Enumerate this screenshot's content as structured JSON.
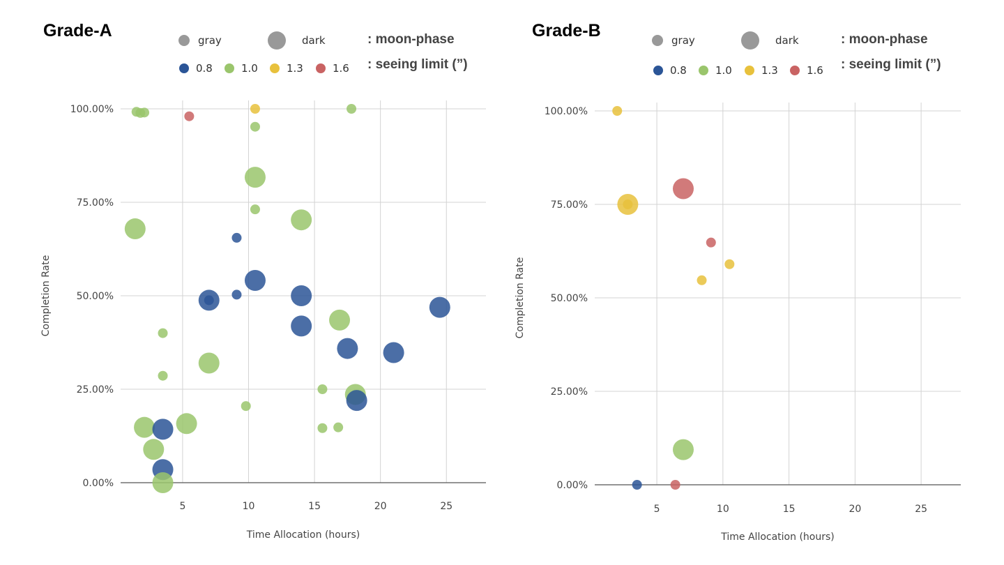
{
  "legend": {
    "moon_phase": {
      "items": [
        "gray",
        "dark"
      ],
      "caption": ": moon-phase"
    },
    "seeing_limit": {
      "items": [
        "0.8",
        "1.0",
        "1.3",
        "1.6"
      ],
      "caption": ": seeing limit (”)"
    }
  },
  "colors": {
    "0.8": "#2b5597",
    "1.0": "#9ac56c",
    "1.3": "#e8c13c",
    "1.6": "#c96363",
    "legend_gray": "#999999"
  },
  "chart_data": [
    {
      "type": "scatter",
      "title": "Grade-A",
      "xlabel": "Time Allocation (hours)",
      "ylabel": "Completion Rate",
      "xlim": [
        0.3,
        28
      ],
      "ylim": [
        0,
        100
      ],
      "xticks": [
        5,
        10,
        15,
        20,
        25
      ],
      "yticks": [
        0,
        25,
        50,
        75,
        100
      ],
      "ytick_labels": [
        "0.00%",
        "25.00%",
        "50.00%",
        "75.00%",
        "100.00%"
      ],
      "grid": true,
      "points": [
        {
          "x": 1.5,
          "y": 99.2,
          "seeing": "1.0",
          "moon": "gray"
        },
        {
          "x": 1.8,
          "y": 98.9,
          "seeing": "1.0",
          "moon": "gray"
        },
        {
          "x": 2.1,
          "y": 99.0,
          "seeing": "1.0",
          "moon": "gray"
        },
        {
          "x": 5.5,
          "y": 98.0,
          "seeing": "1.6",
          "moon": "gray"
        },
        {
          "x": 10.5,
          "y": 100,
          "seeing": "1.3",
          "moon": "gray"
        },
        {
          "x": 17.8,
          "y": 100,
          "seeing": "1.0",
          "moon": "gray"
        },
        {
          "x": 10.5,
          "y": 95.2,
          "seeing": "1.0",
          "moon": "gray"
        },
        {
          "x": 10.5,
          "y": 81.7,
          "seeing": "1.0",
          "moon": "dark"
        },
        {
          "x": 10.5,
          "y": 73.1,
          "seeing": "1.0",
          "moon": "gray"
        },
        {
          "x": 14.0,
          "y": 70.3,
          "seeing": "1.0",
          "moon": "dark"
        },
        {
          "x": 1.4,
          "y": 67.9,
          "seeing": "1.0",
          "moon": "dark"
        },
        {
          "x": 9.1,
          "y": 65.5,
          "seeing": "0.8",
          "moon": "gray"
        },
        {
          "x": 10.5,
          "y": 54.1,
          "seeing": "0.8",
          "moon": "dark"
        },
        {
          "x": 7.0,
          "y": 48.8,
          "seeing": "0.8",
          "moon": "dark"
        },
        {
          "x": 7.0,
          "y": 48.8,
          "seeing": "0.8",
          "moon": "gray"
        },
        {
          "x": 9.1,
          "y": 50.3,
          "seeing": "0.8",
          "moon": "gray"
        },
        {
          "x": 14.0,
          "y": 50.0,
          "seeing": "0.8",
          "moon": "dark"
        },
        {
          "x": 24.5,
          "y": 46.9,
          "seeing": "0.8",
          "moon": "dark"
        },
        {
          "x": 16.9,
          "y": 43.5,
          "seeing": "1.0",
          "moon": "dark"
        },
        {
          "x": 14.0,
          "y": 41.9,
          "seeing": "0.8",
          "moon": "dark"
        },
        {
          "x": 3.5,
          "y": 40.0,
          "seeing": "1.0",
          "moon": "gray"
        },
        {
          "x": 17.5,
          "y": 35.9,
          "seeing": "0.8",
          "moon": "dark"
        },
        {
          "x": 21.0,
          "y": 34.8,
          "seeing": "0.8",
          "moon": "dark"
        },
        {
          "x": 7.0,
          "y": 32.0,
          "seeing": "1.0",
          "moon": "dark"
        },
        {
          "x": 3.5,
          "y": 28.6,
          "seeing": "1.0",
          "moon": "gray"
        },
        {
          "x": 15.6,
          "y": 25.0,
          "seeing": "1.0",
          "moon": "gray"
        },
        {
          "x": 18.1,
          "y": 23.6,
          "seeing": "1.0",
          "moon": "dark"
        },
        {
          "x": 18.2,
          "y": 22.0,
          "seeing": "0.8",
          "moon": "dark"
        },
        {
          "x": 9.8,
          "y": 20.5,
          "seeing": "1.0",
          "moon": "gray"
        },
        {
          "x": 5.3,
          "y": 15.8,
          "seeing": "1.0",
          "moon": "dark"
        },
        {
          "x": 2.1,
          "y": 14.8,
          "seeing": "1.0",
          "moon": "dark"
        },
        {
          "x": 15.6,
          "y": 14.6,
          "seeing": "1.0",
          "moon": "gray"
        },
        {
          "x": 16.8,
          "y": 14.8,
          "seeing": "1.0",
          "moon": "gray"
        },
        {
          "x": 3.5,
          "y": 14.3,
          "seeing": "0.8",
          "moon": "dark"
        },
        {
          "x": 2.8,
          "y": 8.9,
          "seeing": "1.0",
          "moon": "dark"
        },
        {
          "x": 3.5,
          "y": 3.5,
          "seeing": "0.8",
          "moon": "dark"
        },
        {
          "x": 3.5,
          "y": 0.0,
          "seeing": "1.0",
          "moon": "dark"
        }
      ]
    },
    {
      "type": "scatter",
      "title": "Grade-B",
      "xlabel": "Time Allocation (hours)",
      "ylabel": "Completion Rate",
      "xlim": [
        0.3,
        28
      ],
      "ylim": [
        0,
        100
      ],
      "xticks": [
        5,
        10,
        15,
        20,
        25
      ],
      "yticks": [
        0,
        25,
        50,
        75,
        100
      ],
      "ytick_labels": [
        "0.00%",
        "25.00%",
        "50.00%",
        "75.00%",
        "100.00%"
      ],
      "grid": true,
      "points": [
        {
          "x": 2.0,
          "y": 100,
          "seeing": "1.3",
          "moon": "gray"
        },
        {
          "x": 7.0,
          "y": 79.2,
          "seeing": "1.6",
          "moon": "dark"
        },
        {
          "x": 2.8,
          "y": 75.0,
          "seeing": "1.3",
          "moon": "dark"
        },
        {
          "x": 2.8,
          "y": 75.0,
          "seeing": "1.3",
          "moon": "gray"
        },
        {
          "x": 9.1,
          "y": 64.8,
          "seeing": "1.6",
          "moon": "gray"
        },
        {
          "x": 10.5,
          "y": 59.0,
          "seeing": "1.3",
          "moon": "gray"
        },
        {
          "x": 8.4,
          "y": 54.7,
          "seeing": "1.3",
          "moon": "gray"
        },
        {
          "x": 7.0,
          "y": 9.4,
          "seeing": "1.0",
          "moon": "dark"
        },
        {
          "x": 3.5,
          "y": 0.0,
          "seeing": "0.8",
          "moon": "gray"
        },
        {
          "x": 6.4,
          "y": 0.0,
          "seeing": "1.6",
          "moon": "gray"
        }
      ]
    }
  ]
}
